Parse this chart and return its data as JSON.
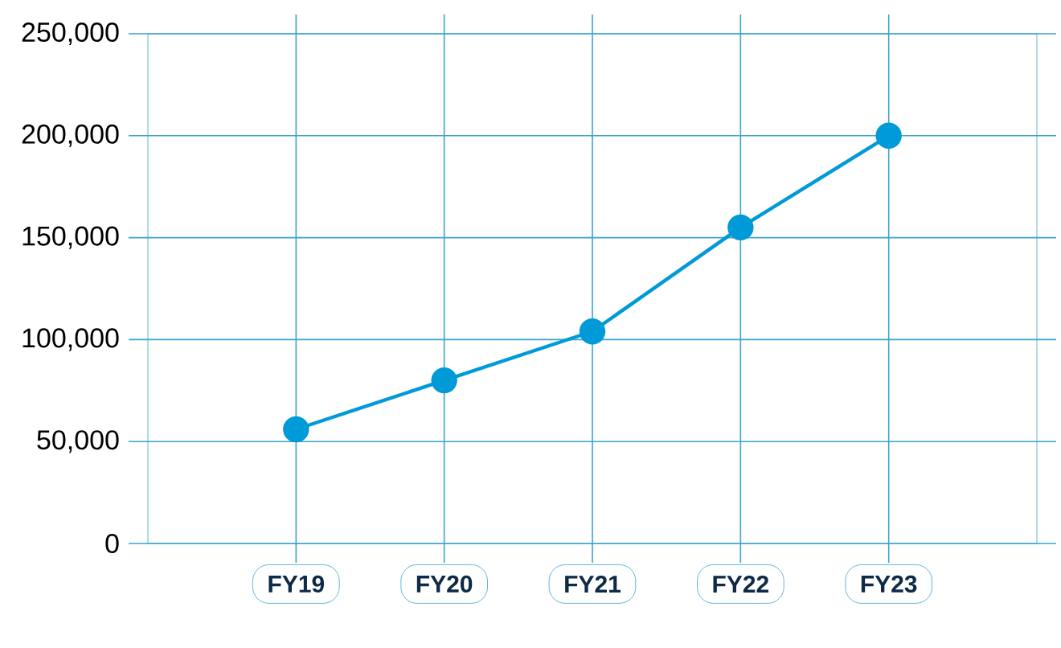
{
  "chart_data": {
    "type": "line",
    "categories": [
      "FY19",
      "FY20",
      "FY21",
      "FY22",
      "FY23"
    ],
    "series": [
      {
        "color": "#009ad8",
        "values": [
          56000,
          80000,
          104000,
          155000,
          200000
        ]
      }
    ],
    "ylim": [
      0,
      250000
    ],
    "yticks": [
      {
        "value": 0,
        "label": "0"
      },
      {
        "value": 50000,
        "label": "50,000"
      },
      {
        "value": 100000,
        "label": "100,000"
      },
      {
        "value": 150000,
        "label": "150,000"
      },
      {
        "value": 200000,
        "label": "200,000"
      },
      {
        "value": 250000,
        "label": "250,000"
      }
    ],
    "grid": true,
    "marker": "circle",
    "line_style": "solid"
  }
}
